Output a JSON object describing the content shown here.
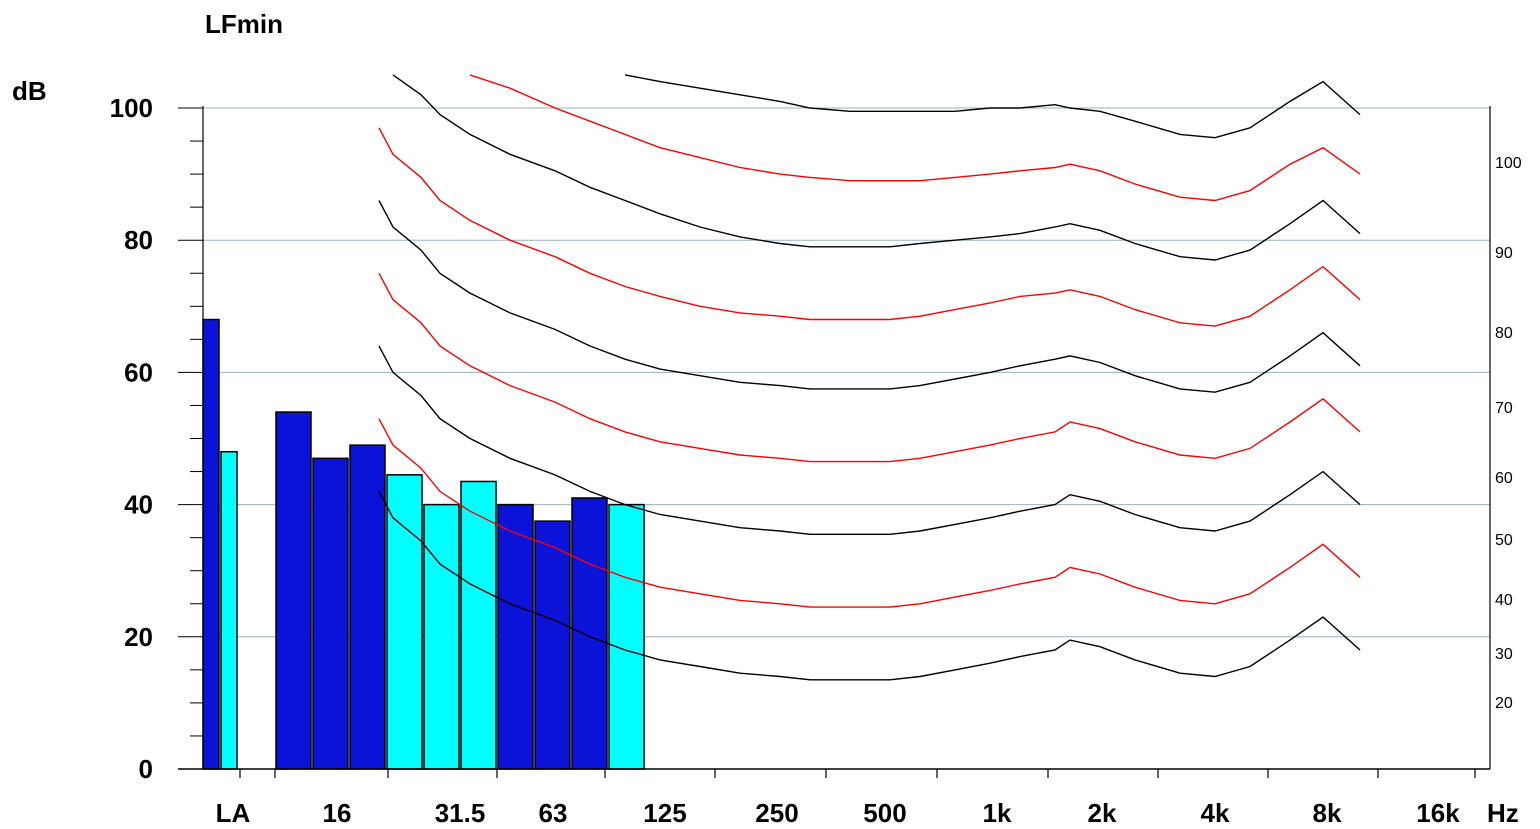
{
  "chart_data": {
    "type": "bar",
    "title": "LFmin",
    "ylabel": "dB",
    "xunit": "Hz",
    "ylim": [
      0,
      100
    ],
    "yticks": [
      "0",
      "20",
      "40",
      "60",
      "80",
      "100"
    ],
    "xticks": [
      "LA",
      "16",
      "31.5",
      "63",
      "125",
      "250",
      "500",
      "1k",
      "2k",
      "4k",
      "8k",
      "16k"
    ],
    "grid": true,
    "bar_colors": {
      "dark": "#0b13d8",
      "light": "#00ffff"
    },
    "bars": [
      {
        "band": "LA",
        "value": 68,
        "color": "dark"
      },
      {
        "band": "LA",
        "value": 48,
        "color": "light"
      },
      {
        "band": "12.5",
        "value": 54,
        "color": "dark"
      },
      {
        "band": "16",
        "value": 47,
        "color": "dark"
      },
      {
        "band": "20",
        "value": 49,
        "color": "dark"
      },
      {
        "band": "25",
        "value": 44.5,
        "color": "light"
      },
      {
        "band": "31.5",
        "value": 40,
        "color": "light"
      },
      {
        "band": "40",
        "value": 43.5,
        "color": "light"
      },
      {
        "band": "50",
        "value": 40,
        "color": "dark"
      },
      {
        "band": "63",
        "value": 37.5,
        "color": "dark"
      },
      {
        "band": "80",
        "value": 41,
        "color": "dark"
      },
      {
        "band": "100",
        "value": 40,
        "color": "light"
      }
    ],
    "contour_colors": {
      "black": "#000000",
      "red": "#ff0000"
    },
    "contour_labels": [
      {
        "label": "100",
        "color": "black"
      },
      {
        "label": "90",
        "color": "red"
      },
      {
        "label": "80",
        "color": "black"
      },
      {
        "label": "70",
        "color": "red"
      },
      {
        "label": "60",
        "color": "black"
      },
      {
        "label": "50",
        "color": "red"
      },
      {
        "label": "40",
        "color": "black"
      },
      {
        "label": "30",
        "color": "red"
      },
      {
        "label": "20",
        "color": "black"
      }
    ],
    "contour_x": [
      "12.5",
      "16",
      "20",
      "25",
      "31.5",
      "40",
      "50",
      "63",
      "80",
      "100",
      "125",
      "160",
      "200",
      "250",
      "315",
      "400",
      "500",
      "630",
      "800",
      "1k",
      "1.25k",
      "1.6k",
      "2k",
      "2.5k",
      "3.15k",
      "4k",
      "5k",
      "6.3k",
      "8k",
      "10k",
      "12.5k"
    ],
    "contours": [
      {
        "phon": 100,
        "color": "black",
        "values": [
          null,
          null,
          null,
          null,
          null,
          null,
          null,
          null,
          null,
          105,
          104,
          103,
          102,
          101,
          100,
          99.5,
          99.5,
          99.5,
          99.5,
          100,
          100,
          100.5,
          100,
          99.5,
          98,
          96,
          95.5,
          97,
          101,
          104,
          99
        ]
      },
      {
        "phon": 90,
        "color": "red",
        "values": [
          null,
          null,
          null,
          null,
          null,
          105,
          103,
          100,
          98,
          96,
          94,
          92.5,
          91,
          90,
          89.5,
          89,
          89,
          89,
          89.5,
          90,
          90.5,
          91,
          91.5,
          90.5,
          88.5,
          86.5,
          86,
          87.5,
          91.5,
          94,
          90
        ]
      },
      {
        "phon": 80,
        "color": "black",
        "values": [
          null,
          null,
          105,
          102,
          99,
          96,
          93,
          90.5,
          88,
          86,
          84,
          82,
          80.5,
          79.5,
          79,
          79,
          79,
          79.5,
          80,
          80.5,
          81,
          82,
          82.5,
          81.5,
          79.5,
          77.5,
          77,
          78.5,
          82.5,
          86,
          81
        ]
      },
      {
        "phon": 70,
        "color": "red",
        "values": [
          null,
          97,
          93,
          89.5,
          86,
          83,
          80,
          77.5,
          75,
          73,
          71.5,
          70,
          69,
          68.5,
          68,
          68,
          68,
          68.5,
          69.5,
          70.5,
          71.5,
          72,
          72.5,
          71.5,
          69.5,
          67.5,
          67,
          68.5,
          72.5,
          76,
          71
        ]
      },
      {
        "phon": 60,
        "color": "black",
        "values": [
          null,
          86,
          82,
          78.5,
          75,
          72,
          69,
          66.5,
          64,
          62,
          60.5,
          59.5,
          58.5,
          58,
          57.5,
          57.5,
          57.5,
          58,
          59,
          60,
          61,
          62,
          62.5,
          61.5,
          59.5,
          57.5,
          57,
          58.5,
          62.5,
          66,
          61
        ]
      },
      {
        "phon": 50,
        "color": "red",
        "values": [
          null,
          75,
          71,
          67.5,
          64,
          61,
          58,
          55.5,
          53,
          51,
          49.5,
          48.5,
          47.5,
          47,
          46.5,
          46.5,
          46.5,
          47,
          48,
          49,
          50,
          51,
          52.5,
          51.5,
          49.5,
          47.5,
          47,
          48.5,
          52.5,
          56,
          51
        ]
      },
      {
        "phon": 40,
        "color": "black",
        "values": [
          null,
          64,
          60,
          56.5,
          53,
          50,
          47,
          44.5,
          42,
          40,
          38.5,
          37.5,
          36.5,
          36,
          35.5,
          35.5,
          35.5,
          36,
          37,
          38,
          39,
          40,
          41.5,
          40.5,
          38.5,
          36.5,
          36,
          37.5,
          41.5,
          45,
          40
        ]
      },
      {
        "phon": 30,
        "color": "red",
        "values": [
          null,
          53,
          49,
          45.5,
          42,
          39,
          36,
          33.5,
          31,
          29,
          27.5,
          26.5,
          25.5,
          25,
          24.5,
          24.5,
          24.5,
          25,
          26,
          27,
          28,
          29,
          30.5,
          29.5,
          27.5,
          25.5,
          25,
          26.5,
          30.5,
          34,
          29
        ]
      },
      {
        "phon": 20,
        "color": "black",
        "values": [
          null,
          42,
          38,
          34.5,
          31,
          28,
          25,
          22.5,
          20,
          18,
          16.5,
          15.5,
          14.5,
          14,
          13.5,
          13.5,
          13.5,
          14,
          15,
          16,
          17,
          18,
          19.5,
          18.5,
          16.5,
          14.5,
          14,
          15.5,
          19.5,
          23,
          18
        ]
      }
    ]
  }
}
